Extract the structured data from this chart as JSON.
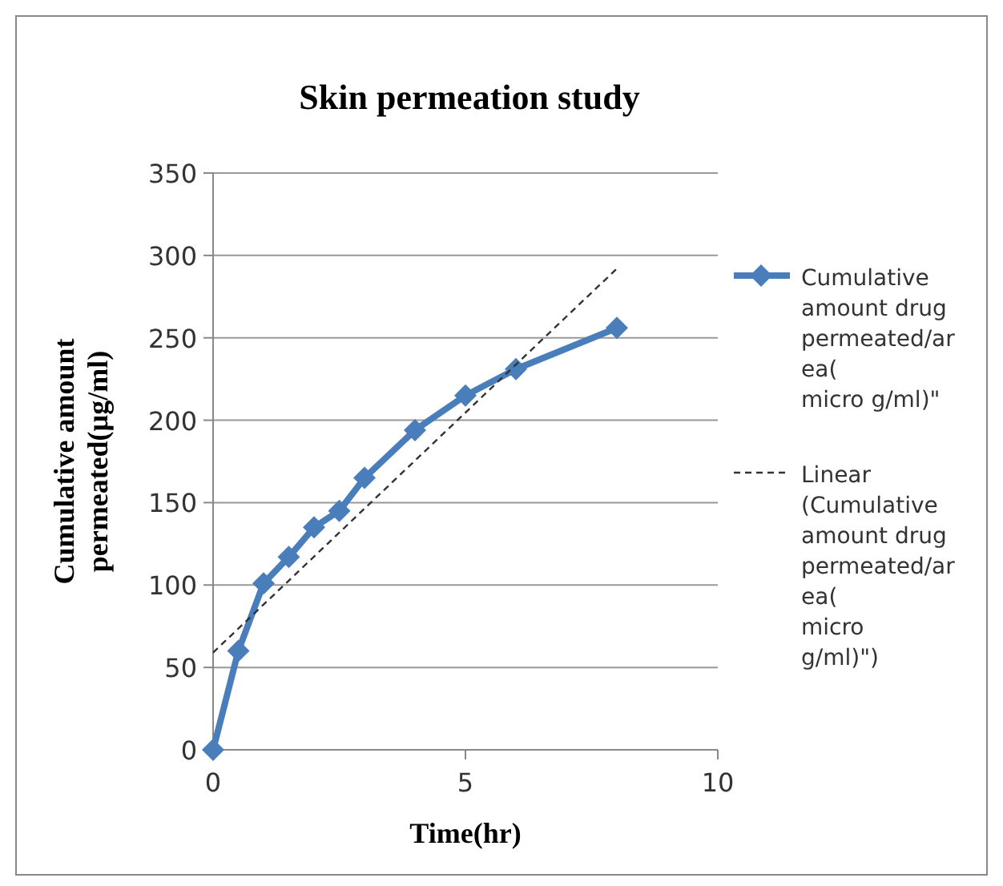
{
  "chart_data": {
    "type": "line",
    "title": "Skin permeation  study",
    "xlabel": "Time(hr)",
    "ylabel": "Cumulative amount permeated(µg/ml)",
    "xlim": [
      0,
      10
    ],
    "xticks": [
      0,
      5,
      10
    ],
    "ylim": [
      0,
      350
    ],
    "yticks": [
      0,
      50,
      100,
      150,
      200,
      250,
      300,
      350
    ],
    "grid": "y",
    "legend": "right",
    "series": [
      {
        "name": "Cumulative amount drug permeated/area( micro g/ml)\"",
        "color": "#4a7ebb",
        "marker": "diamond",
        "line_style": "solid",
        "x": [
          0,
          0.5,
          1,
          1.5,
          2,
          2.5,
          3,
          4,
          5,
          6,
          8
        ],
        "values": [
          0,
          60,
          101,
          117,
          135,
          145,
          165,
          194,
          215,
          231,
          256
        ]
      },
      {
        "name": "Linear (Cumulative amount drug permeated/area( micro g/ml)\")",
        "color": "#333333",
        "marker": "none",
        "line_style": "dashed",
        "x": [
          0,
          8
        ],
        "values": [
          59,
          292
        ]
      }
    ]
  }
}
